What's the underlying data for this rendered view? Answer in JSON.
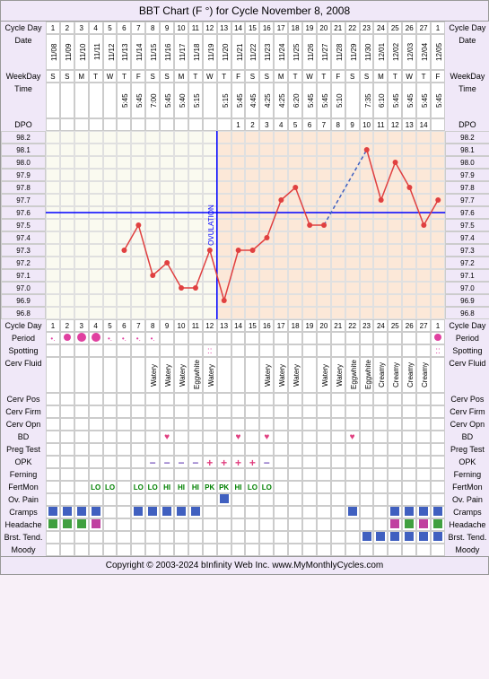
{
  "title": "BBT Chart (F °) for Cycle November 8, 2008",
  "footer": "Copyright © 2003-2024 bInfinity Web Inc.    www.MyMonthlyCycles.com",
  "cols": {
    "left_label_w": 50,
    "right_label_w": 50,
    "day_w": 15.9,
    "n_days": 28
  },
  "rows": {
    "cycleDay": {
      "label": "Cycle Day",
      "values": [
        1,
        2,
        3,
        4,
        5,
        6,
        7,
        8,
        9,
        10,
        11,
        12,
        13,
        14,
        15,
        16,
        17,
        18,
        19,
        20,
        21,
        22,
        23,
        24,
        25,
        26,
        27,
        1
      ]
    },
    "date": {
      "label": "Date",
      "values": [
        "11/08",
        "11/09",
        "11/10",
        "11/11",
        "11/12",
        "11/13",
        "11/14",
        "11/15",
        "11/16",
        "11/17",
        "11/18",
        "11/19",
        "11/20",
        "11/21",
        "11/22",
        "11/23",
        "11/24",
        "11/25",
        "11/26",
        "11/27",
        "11/28",
        "11/29",
        "11/30",
        "12/01",
        "12/02",
        "12/03",
        "12/04",
        "12/05"
      ]
    },
    "weekday": {
      "label": "WeekDay",
      "values": [
        "S",
        "S",
        "M",
        "T",
        "W",
        "T",
        "F",
        "S",
        "S",
        "M",
        "T",
        "W",
        "T",
        "F",
        "S",
        "S",
        "M",
        "T",
        "W",
        "T",
        "F",
        "S",
        "S",
        "M",
        "T",
        "W",
        "T",
        "F"
      ]
    },
    "time": {
      "label": "Time",
      "values": [
        "",
        "",
        "",
        "",
        "",
        "5:45",
        "5:45",
        "7:00",
        "5:45",
        "5:40",
        "5:15",
        "",
        "5:15",
        "5:45",
        "4:45",
        "4:25",
        "4:25",
        "6:20",
        "5:45",
        "5:45",
        "5:10",
        "",
        "7:35",
        "6:10",
        "5:45",
        "5:45",
        "5:45",
        "5:45"
      ]
    },
    "dpo": {
      "label": "DPO",
      "values": [
        "",
        "",
        "",
        "",
        "",
        "",
        "",
        "",
        "",
        "",
        "",
        "",
        "",
        1,
        2,
        3,
        4,
        5,
        6,
        7,
        8,
        9,
        10,
        11,
        12,
        13,
        14,
        ""
      ]
    }
  },
  "temps": {
    "ylabels": [
      98.2,
      98.1,
      98.0,
      97.9,
      97.8,
      97.7,
      97.6,
      97.5,
      97.4,
      97.3,
      97.2,
      97.1,
      97.0,
      96.9,
      96.8
    ],
    "coverline": 97.6,
    "ovulation_day": 13,
    "values": [
      null,
      null,
      null,
      null,
      null,
      97.3,
      97.5,
      97.1,
      97.2,
      97.0,
      97.0,
      97.3,
      96.9,
      97.3,
      97.3,
      97.4,
      97.7,
      97.8,
      97.5,
      97.5,
      null,
      null,
      98.1,
      97.7,
      98.0,
      97.8,
      97.5,
      97.7
    ],
    "colors": {
      "line": "#e04040",
      "point": "#e04040",
      "cover": "#0000ff",
      "ov": "#0000ff",
      "dashed": "#4060c0"
    }
  },
  "dataRows": [
    {
      "key": "period",
      "label": "Period",
      "type": "period",
      "values": [
        "light",
        "med",
        "heavy",
        "heavy",
        "light",
        "light",
        "light",
        "light",
        "",
        "",
        "",
        "",
        "",
        "",
        "",
        "",
        "",
        "",
        "",
        "",
        "",
        "",
        "",
        "",
        "",
        "",
        "",
        "med"
      ]
    },
    {
      "key": "spotting",
      "label": "Spotting",
      "type": "spotting",
      "values": [
        "",
        "",
        "",
        "",
        "",
        "",
        "",
        "",
        "",
        "",
        "",
        "yes",
        "",
        "",
        "",
        "",
        "",
        "",
        "",
        "",
        "",
        "",
        "",
        "",
        "",
        "",
        "",
        "yes"
      ]
    },
    {
      "key": "cervfluid",
      "label": "Cerv Fluid",
      "type": "vtext",
      "values": [
        "",
        "",
        "",
        "",
        "",
        "",
        "",
        "Watery",
        "Watery",
        "Watery",
        "Eggwhite",
        "Watery",
        "",
        "",
        "",
        "Watery",
        "Watery",
        "Watery",
        "",
        "Watery",
        "Watery",
        "Eggwhite",
        "Eggwhite",
        "Creamy",
        "Creamy",
        "Creamy",
        "Creamy",
        ""
      ]
    },
    {
      "key": "cervpos",
      "label": "Cerv Pos",
      "type": "blank",
      "values": []
    },
    {
      "key": "cervfirm",
      "label": "Cerv Firm",
      "type": "blank",
      "values": []
    },
    {
      "key": "cervopn",
      "label": "Cerv Opn",
      "type": "blank",
      "values": []
    },
    {
      "key": "bd",
      "label": "BD",
      "type": "heart",
      "values": [
        "",
        "",
        "",
        "",
        "",
        "",
        "",
        "",
        "y",
        "",
        "",
        "",
        "",
        "y",
        "",
        "y",
        "",
        "",
        "",
        "",
        "",
        "y",
        "",
        "",
        "",
        "",
        "",
        ""
      ]
    },
    {
      "key": "pregtest",
      "label": "Preg Test",
      "type": "blank",
      "values": []
    },
    {
      "key": "opk",
      "label": "OPK",
      "type": "opk",
      "values": [
        "",
        "",
        "",
        "",
        "",
        "",
        "",
        "n",
        "n",
        "n",
        "n",
        "p",
        "p",
        "p",
        "p",
        "n",
        "",
        "",
        "",
        "",
        "",
        "",
        "",
        "",
        "",
        "",
        "",
        ""
      ]
    },
    {
      "key": "ferning",
      "label": "Ferning",
      "type": "blank",
      "values": []
    },
    {
      "key": "fertmon",
      "label": "FertMon",
      "type": "text",
      "values": [
        "",
        "",
        "",
        "LO",
        "LO",
        "",
        "LO",
        "LO",
        "HI",
        "HI",
        "HI",
        "PK",
        "PK",
        "HI",
        "LO",
        "LO",
        "",
        "",
        "",
        "",
        "",
        "",
        "",
        "",
        "",
        "",
        "",
        ""
      ],
      "color": "#008000"
    },
    {
      "key": "ovpain",
      "label": "Ov. Pain",
      "type": "square",
      "values": [
        "",
        "",
        "",
        "",
        "",
        "",
        "",
        "",
        "",
        "",
        "",
        "",
        "y",
        "",
        "",
        "",
        "",
        "",
        "",
        "",
        "",
        "",
        "",
        "",
        "",
        "",
        "",
        ""
      ],
      "color": "#4060c0"
    },
    {
      "key": "cramps",
      "label": "Cramps",
      "type": "square",
      "values": [
        "y",
        "y",
        "y",
        "y",
        "",
        "",
        "y",
        "y",
        "y",
        "y",
        "y",
        "",
        "",
        "",
        "",
        "",
        "",
        "",
        "",
        "",
        "",
        "y",
        "",
        "",
        "y",
        "y",
        "y",
        "y"
      ],
      "color": "#4060c0"
    },
    {
      "key": "headache",
      "label": "Headache",
      "type": "square",
      "values": [
        "y",
        "y",
        "y",
        "y",
        "",
        "",
        "",
        "",
        "",
        "",
        "",
        "",
        "",
        "",
        "",
        "",
        "",
        "",
        "",
        "",
        "",
        "",
        "",
        "",
        "y",
        "y",
        "y",
        "y"
      ],
      "colors": [
        "#40a040",
        "#40a040",
        "#40a040",
        "#c040a0",
        "",
        "",
        "",
        "",
        "",
        "",
        "",
        "",
        "",
        "",
        "",
        "",
        "",
        "",
        "",
        "",
        "",
        "",
        "",
        "",
        "#c040a0",
        "#40a040",
        "#c040a0",
        "#40a040"
      ]
    },
    {
      "key": "brsttend",
      "label": "Brst. Tend.",
      "type": "square",
      "values": [
        "",
        "",
        "",
        "",
        "",
        "",
        "",
        "",
        "",
        "",
        "",
        "",
        "",
        "",
        "",
        "",
        "",
        "",
        "",
        "",
        "",
        "",
        "y",
        "y",
        "y",
        "y",
        "y",
        "y"
      ],
      "color": "#4060c0"
    },
    {
      "key": "moody",
      "label": "Moody",
      "type": "blank",
      "values": []
    }
  ]
}
